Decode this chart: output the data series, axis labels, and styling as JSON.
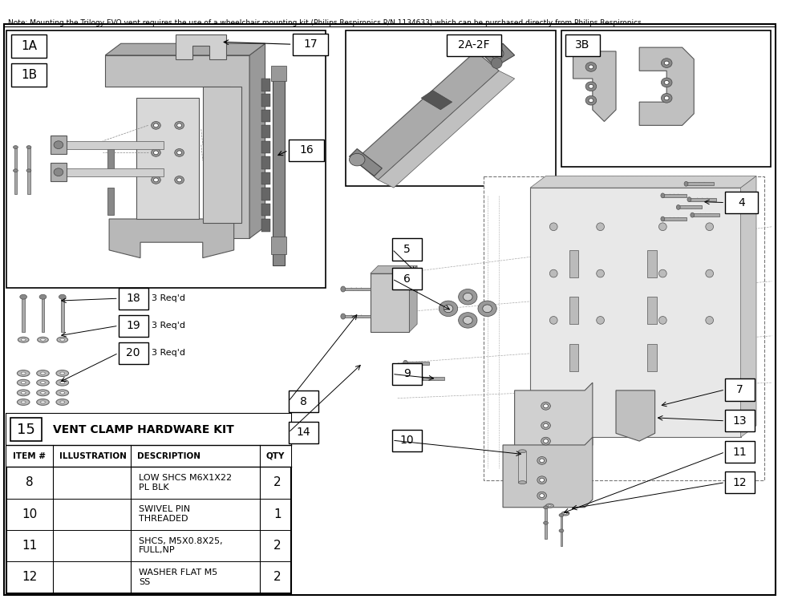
{
  "note": "Note: Mounting the Trilogy EVO vent requires the use of a wheelchair mounting kit (Philips Respironics P/N 1134633) which can be purchased directly from Philips Respironics.",
  "table_title": "VENT CLAMP HARDWARE KIT",
  "table_item_number": "15",
  "table_headers": [
    "ITEM #",
    "ILLUSTRATION",
    "DESCRIPTION",
    "QTY"
  ],
  "table_rows": [
    {
      "item": "8",
      "desc": "LOW SHCS M6X1X22\nPL BLK",
      "qty": "2"
    },
    {
      "item": "10",
      "desc": "SWIVEL PIN\nTHREADED",
      "qty": "1"
    },
    {
      "item": "11",
      "desc": "SHCS, M5X0.8X25,\nFULL,NP",
      "qty": "2"
    },
    {
      "item": "12",
      "desc": "WASHER FLAT M5\nSS",
      "qty": "2"
    }
  ],
  "bg": "#ffffff",
  "fg": "#000000",
  "gray1": "#b0b0b0",
  "gray2": "#cccccc",
  "gray3": "#888888",
  "gray4": "#555555",
  "gray5": "#e0e0e0",
  "gray6": "#d0d0d0"
}
